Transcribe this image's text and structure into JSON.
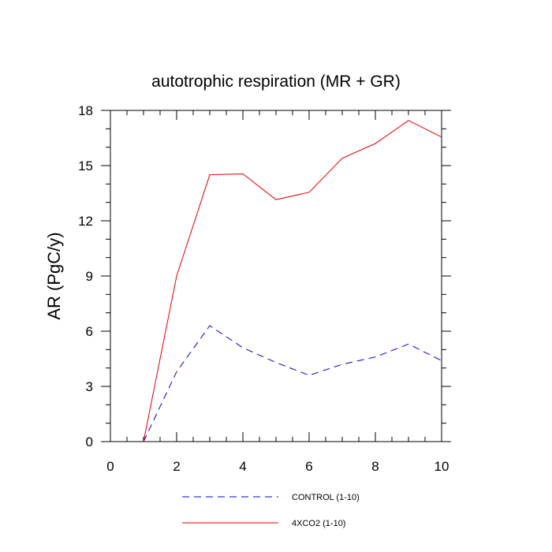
{
  "chart_data": {
    "type": "line",
    "title": "autotrophic respiration (MR + GR)",
    "xlabel": "",
    "ylabel": "AR  (PgC/y)",
    "xlim": [
      0,
      10
    ],
    "ylim": [
      0,
      18
    ],
    "x_ticks": [
      0,
      2,
      4,
      6,
      8,
      10
    ],
    "y_ticks": [
      0,
      3,
      6,
      9,
      12,
      15,
      18
    ],
    "x_tick_labels": [
      "0",
      "2",
      "4",
      "6",
      "8",
      "10"
    ],
    "y_tick_labels": [
      "0",
      "3",
      "6",
      "9",
      "12",
      "15",
      "18"
    ],
    "x": [
      1,
      2,
      3,
      4,
      5,
      6,
      7,
      8,
      9,
      10
    ],
    "series": [
      {
        "name": "CONTROL (1-10)",
        "color": "#0000cc",
        "dash": "dashed",
        "values": [
          0.0,
          3.8,
          6.3,
          5.1,
          4.3,
          3.6,
          4.2,
          4.6,
          5.3,
          4.4
        ]
      },
      {
        "name": "4XCO2 (1-10)",
        "color": "#e00000",
        "dash": "solid",
        "values": [
          0.0,
          9.0,
          14.5,
          14.55,
          13.15,
          13.55,
          15.4,
          16.2,
          17.45,
          16.55
        ]
      }
    ],
    "legend_position": "bottom-center"
  }
}
